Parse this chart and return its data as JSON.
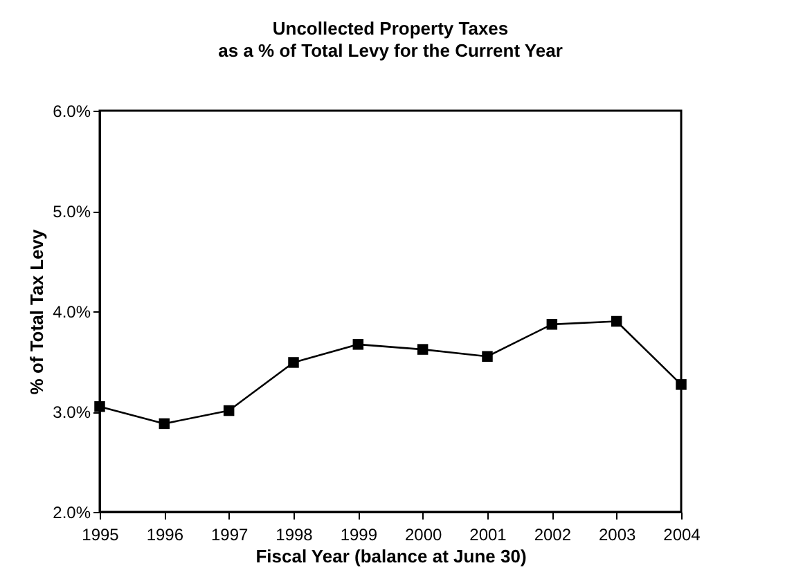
{
  "chart_data": {
    "type": "line",
    "title": "Uncollected Property Taxes",
    "subtitle": "as a % of Total Levy for the Current Year",
    "xlabel": "Fiscal Year (balance at June 30)",
    "ylabel": "% of Total Tax Levy",
    "x": [
      1995,
      1996,
      1997,
      1998,
      1999,
      2000,
      2001,
      2002,
      2003,
      2004
    ],
    "series": [
      {
        "color": "#000000",
        "values": [
          3.05,
          2.88,
          3.01,
          3.49,
          3.67,
          3.62,
          3.55,
          3.87,
          3.9,
          3.27
        ]
      }
    ],
    "xlim": [
      1995,
      2004
    ],
    "xticks": [
      1995,
      1996,
      1997,
      1998,
      1999,
      2000,
      2001,
      2002,
      2003,
      2004
    ],
    "ylim": [
      2,
      6
    ],
    "yticks": [
      {
        "value": 2,
        "label": "2.0%"
      },
      {
        "value": 3,
        "label": "3.0%"
      },
      {
        "value": 4,
        "label": "4.0%"
      },
      {
        "value": 5,
        "label": "5.0%"
      },
      {
        "value": 6,
        "label": "6.0%"
      }
    ],
    "grid": false,
    "marker": "square",
    "line_style": "solid"
  }
}
